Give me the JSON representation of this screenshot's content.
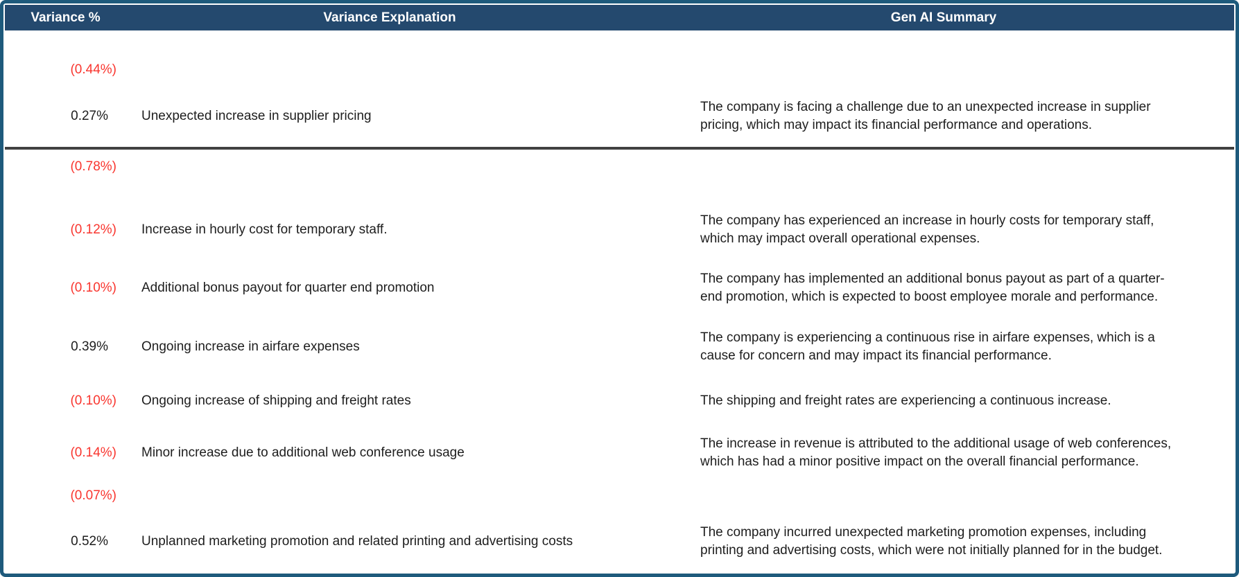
{
  "table": {
    "columns": [
      {
        "label": "Variance %"
      },
      {
        "label": "Variance Explanation"
      },
      {
        "label": "Gen AI Summary"
      }
    ],
    "rows": [
      {
        "variance": "(0.44%)",
        "negative": true,
        "explanation": "",
        "summary": ""
      },
      {
        "variance": "0.27%",
        "negative": false,
        "explanation": "Unexpected increase in supplier pricing",
        "summary": "The company is facing a challenge due to an unexpected increase in supplier pricing, which may impact its financial performance and operations.",
        "section_end": true
      },
      {
        "variance": "(0.78%)",
        "negative": true,
        "explanation": "",
        "summary": ""
      },
      {
        "variance": "(0.12%)",
        "negative": true,
        "explanation": "Increase in hourly cost for temporary staff.",
        "summary": "The company has experienced an increase in hourly costs for temporary staff, which may impact overall operational expenses."
      },
      {
        "variance": "(0.10%)",
        "negative": true,
        "explanation": "Additional bonus payout for quarter end promotion",
        "summary": "The company has implemented an additional bonus payout as part of a quarter-end promotion, which is expected to boost employee morale and performance."
      },
      {
        "variance": "0.39%",
        "negative": false,
        "explanation": "Ongoing increase in airfare expenses",
        "summary": "The company is experiencing a continuous rise in airfare expenses, which is a cause for concern and may impact its financial performance."
      },
      {
        "variance": "(0.10%)",
        "negative": true,
        "explanation": "Ongoing increase of shipping and freight rates",
        "summary": "The shipping and freight rates are experiencing a continuous increase."
      },
      {
        "variance": "(0.14%)",
        "negative": true,
        "explanation": "Minor increase due to additional web conference usage",
        "summary": "The increase in revenue is attributed to the additional usage of web conferences, which has had a minor positive impact on the overall financial performance."
      },
      {
        "variance": "(0.07%)",
        "negative": true,
        "explanation": "",
        "summary": ""
      },
      {
        "variance": "0.52%",
        "negative": false,
        "explanation": "Unplanned marketing promotion and related printing and advertising costs",
        "summary": "The company incurred unexpected marketing promotion expenses, including printing and advertising costs, which were not initially planned for in the budget."
      }
    ],
    "colors": {
      "header_bg": "#24496e",
      "header_text": "#ffffff",
      "frame_border": "#1e5a7c",
      "negative_value": "#f9352e",
      "body_text": "#1d1d1d",
      "section_divider": "#414141"
    }
  }
}
